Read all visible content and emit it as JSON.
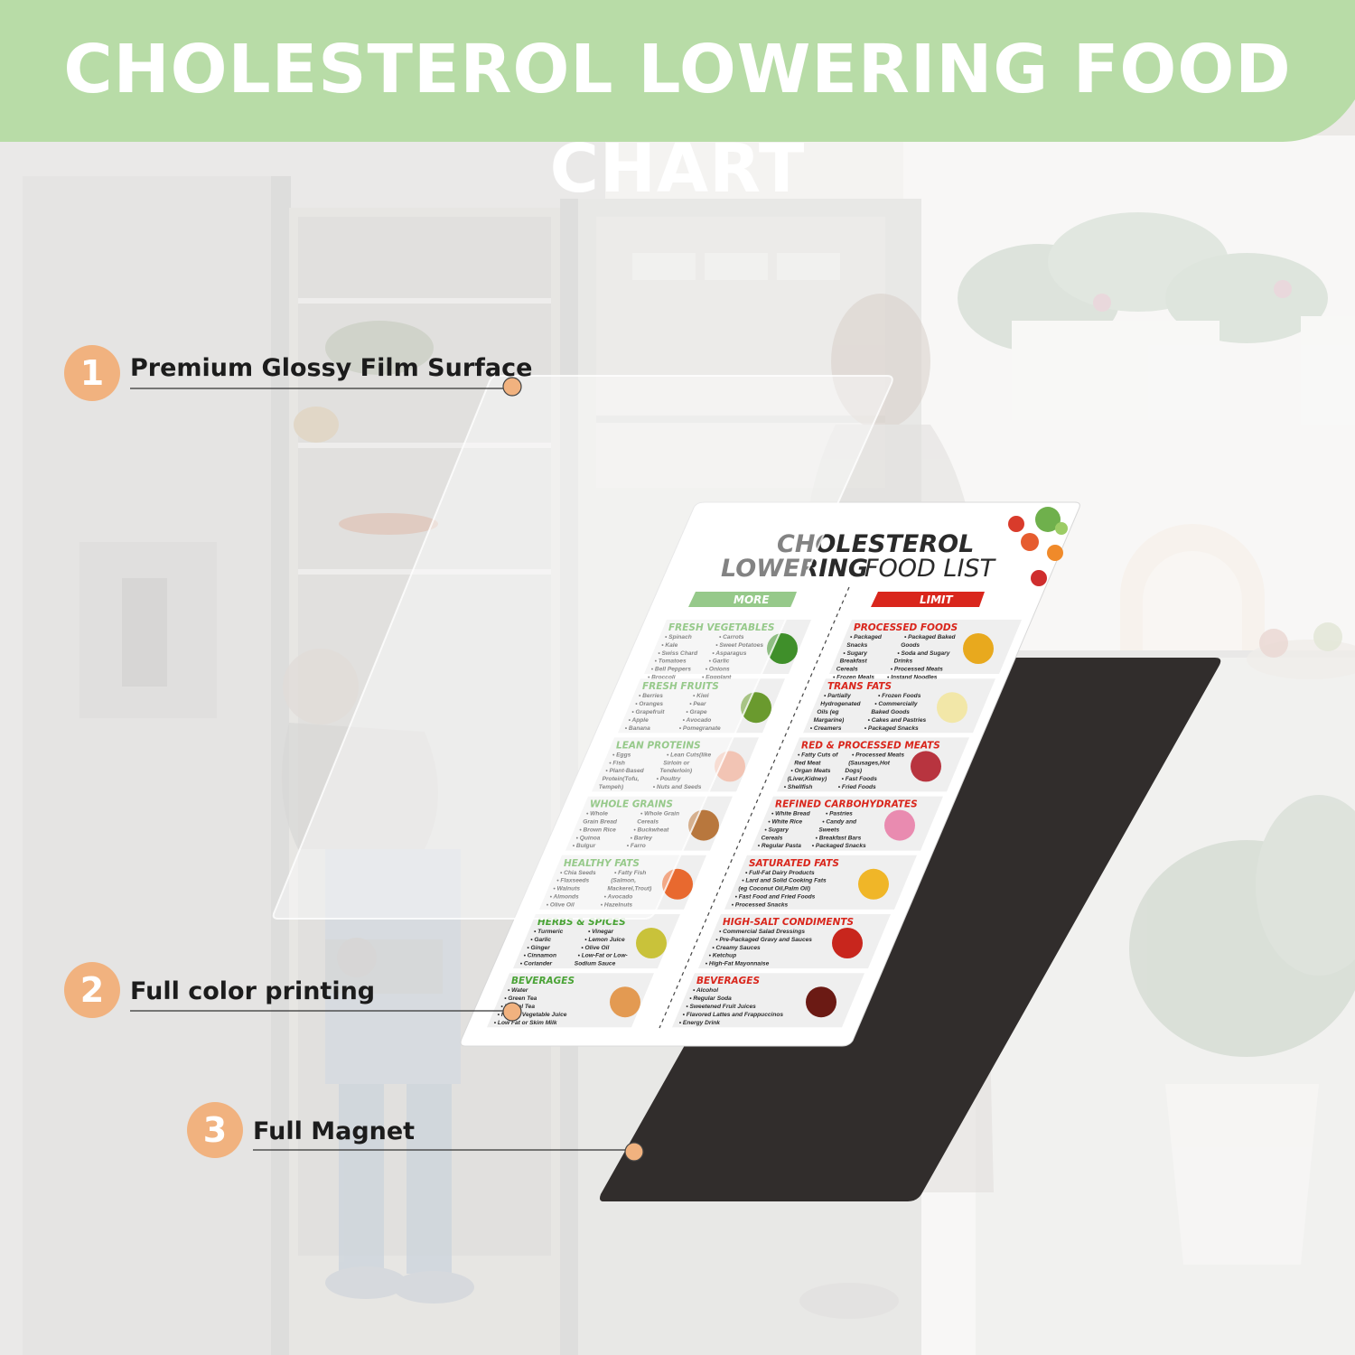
{
  "banner": {
    "title": "CHOLESTEROL LOWERING FOOD CHART",
    "color": "#b8dca7"
  },
  "callouts": [
    {
      "number": "1",
      "label": "Premium Glossy Film Surface"
    },
    {
      "number": "2",
      "label": "Full color printing"
    },
    {
      "number": "3",
      "label": "Full Magnet"
    }
  ],
  "food_list": {
    "title_line1": "CHOLESTEROL",
    "title_line2_a": "LOWERING",
    "title_line2_b": "FOOD LIST",
    "more_label": "MORE",
    "limit_label": "LIMIT",
    "more": [
      {
        "heading": "FRESH VEGETABLES",
        "col1": [
          "• Spinach",
          "• Kale",
          "• Swiss Chard",
          "• Tomatoes",
          "• Bell Peppers",
          "• Broccoli"
        ],
        "col2": [
          "• Carrots",
          "• Sweet Potatoes",
          "• Asparagus",
          "• Garlic",
          "• Onions",
          "• Eggplant"
        ],
        "icon": "broccoli-icon"
      },
      {
        "heading": "FRESH FRUITS",
        "col1": [
          "• Berries",
          "• Oranges",
          "• Grapefruit",
          "• Apple",
          "• Banana"
        ],
        "col2": [
          "• Kiwi",
          "• Pear",
          "• Grape",
          "• Avocado",
          "• Pomegranate"
        ],
        "icon": "avocado-icon"
      },
      {
        "heading": "LEAN PROTEINS",
        "col1": [
          "• Eggs",
          "• Fish",
          "• Plant-Based",
          "Protein(Tofu,",
          "Tempeh)"
        ],
        "col2": [
          "• Lean Cuts(like",
          "Sirloin or",
          "Tenderloin)",
          "• Poultry",
          "• Nuts and Seeds"
        ],
        "icon": "chicken-icon"
      },
      {
        "heading": "WHOLE GRAINS",
        "col1": [
          "• Whole",
          "Grain Bread",
          "• Brown Rice",
          "• Quinoa",
          "• Bulgur"
        ],
        "col2": [
          "• Whole Grain",
          "Cereals",
          "• Buckwheat",
          "• Barley",
          "• Farro"
        ],
        "icon": "bread-icon"
      },
      {
        "heading": "HEALTHY FATS",
        "col1": [
          "• Chia Seeds",
          "• Flaxseeds",
          "• Walnuts",
          "• Almonds",
          "• Olive Oil"
        ],
        "col2": [
          "• Fatty Fish",
          "(Salmon,",
          "Mackerel,Trout)",
          "• Avocado",
          "• Hazelnuts"
        ],
        "icon": "salmon-icon"
      },
      {
        "heading": "HERBS & SPICES",
        "col1": [
          "• Turmeric",
          "• Garlic",
          "• Ginger",
          "• Cinnamon",
          "• Coriander"
        ],
        "col2": [
          "• Vinegar",
          "• Lemon Juice",
          "• Olive Oil",
          "• Low-Fat or Low-",
          "Sodium Sauce"
        ],
        "icon": "oil-bottle-icon"
      },
      {
        "heading": "BEVERAGES",
        "col1": [
          "• Water",
          "• Green Tea",
          "• Herbal Tea",
          "• Fruit & Vegetable Juice",
          "• Low Fat or Skim Milk"
        ],
        "col2": [],
        "icon": "tea-icon"
      }
    ],
    "limit": [
      {
        "heading": "PROCESSED FOODS",
        "col1": [
          "• Packaged",
          "Snacks",
          "• Sugary",
          "Breakfast",
          "Cereals",
          "• Frozen Meals"
        ],
        "col2": [
          "• Packaged Baked",
          "Goods",
          "• Soda and Sugary",
          "Drinks",
          "• Processed Meats",
          "• Instand Noodles"
        ],
        "icon": "chips-icon"
      },
      {
        "heading": "TRANS FATS",
        "col1": [
          "• Partially",
          "Hydrogenated",
          "Oils (eg",
          "Margarine)",
          "• Creamers"
        ],
        "col2": [
          "• Frozen Foods",
          "• Commercially",
          "Baked Goods",
          "• Cakes and Pastries",
          "• Packaged Snacks"
        ],
        "icon": "margarine-icon"
      },
      {
        "heading": "RED & PROCESSED MEATS",
        "col1": [
          "• Fatty Cuts of",
          "Red Meat",
          "• Organ Meats",
          "(Liver,Kidney)",
          "• Shellfish"
        ],
        "col2": [
          "• Processed Meats",
          "(Sausages,Hot",
          "Dogs)",
          "• Fast Foods",
          "• Fried Foods"
        ],
        "icon": "steak-icon"
      },
      {
        "heading": "REFINED CARBOHYDRATES",
        "col1": [
          "• White Bread",
          "• White Rice",
          "• Sugary",
          "Cereals",
          "• Regular Pasta"
        ],
        "col2": [
          "• Pastries",
          "• Candy and",
          "Sweets",
          "• Breakfast Bars",
          "• Packaged Snacks"
        ],
        "icon": "donut-icon"
      },
      {
        "heading": "SATURATED FATS",
        "col1": [
          "• Full-Fat Dairy Products",
          "• Lard and Solid Cooking Fats",
          "(eg Coconut Oil,Palm Oil)",
          "• Fast Food and Fried Foods",
          "• Processed Snacks"
        ],
        "col2": [],
        "icon": "fries-icon"
      },
      {
        "heading": "HIGH-SALT CONDIMENTS",
        "col1": [
          "• Commercial Salad Dressings",
          "• Pre-Packaged Gravy and Sauces",
          "• Creamy Sauces",
          "• Ketchup",
          "• High-Fat Mayonnaise"
        ],
        "col2": [],
        "icon": "ketchup-icon"
      },
      {
        "heading": "BEVERAGES",
        "col1": [
          "• Alcohol",
          "• Regular Soda",
          "• Sweetened Fruit Juices",
          "• Flavored Lattes and Frappuccinos",
          "• Energy Drink"
        ],
        "col2": [],
        "icon": "cola-icon"
      }
    ]
  }
}
